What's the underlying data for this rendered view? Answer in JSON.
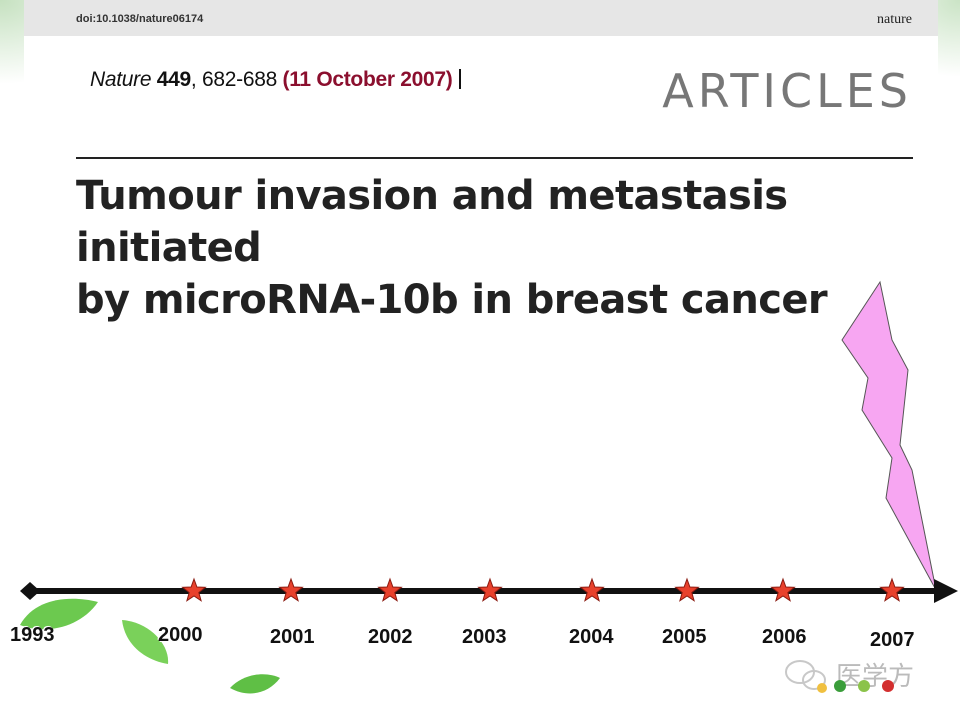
{
  "header": {
    "doi": "doi:10.1038/nature06174",
    "journal": "nature"
  },
  "citation": {
    "journal": "Nature",
    "volume": "449",
    "pages": ", 682-688 ",
    "date": "(11 October 2007)"
  },
  "section_label": "ARTICLES",
  "title_line1": "Tumour invasion and metastasis initiated",
  "title_line2": "by microRNA-10b in breast cancer",
  "timeline": {
    "years": [
      "1993",
      "2000",
      "2001",
      "2002",
      "2003",
      "2004",
      "2005",
      "2006",
      "2007"
    ]
  },
  "watermark": {
    "text": "医学方"
  },
  "colors": {
    "date_red": "#8b0f2e",
    "star_red": "#e8412c",
    "lightning_pink": "#f7a6f2",
    "leaf_green": "#6cc94f"
  }
}
